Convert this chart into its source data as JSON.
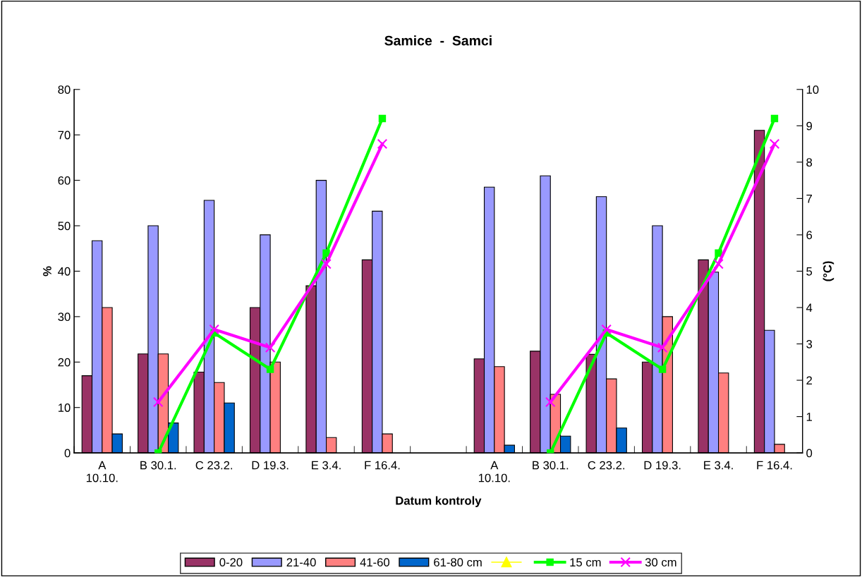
{
  "chart_data": {
    "type": "bar",
    "title": "Samice  -  Samci",
    "xlabel": "Datum kontroly",
    "ylabel": "%",
    "y2label": "(°C)",
    "categories": [
      "A\n10.10.",
      "B 30.1.",
      "C 23.2.",
      "D 19.3.",
      "E 3.4.",
      "F 16.4.",
      null,
      "A\n10.10.",
      "B 30.1.",
      "C 23.2.",
      "D 19.3.",
      "E 3.4.",
      "F 16.4."
    ],
    "series": [
      {
        "name": "0-20",
        "color": "#993366",
        "values": [
          17,
          21.8,
          17.8,
          32,
          36.8,
          42.5,
          null,
          20.7,
          22.4,
          21.7,
          20,
          42.5,
          71
        ]
      },
      {
        "name": "21-40",
        "color": "#9999ff",
        "values": [
          46.7,
          50,
          55.6,
          48,
          60,
          53.2,
          null,
          58.5,
          61,
          56.4,
          50,
          39.8,
          27
        ]
      },
      {
        "name": "41-60",
        "color": "#ff8080",
        "values": [
          32,
          21.8,
          15.5,
          20,
          3.4,
          4.2,
          null,
          19,
          12.9,
          16.3,
          30,
          17.6,
          1.9
        ]
      },
      {
        "name": "61-80 cm",
        "color": "#0066cc",
        "values": [
          4.2,
          6.6,
          11,
          null,
          null,
          null,
          null,
          1.7,
          3.7,
          5.5,
          null,
          null,
          null
        ]
      },
      {
        "type": "line",
        "axis": "y2",
        "color": "#ffff00",
        "marker": "triangle",
        "values": [
          null,
          null,
          null,
          null,
          null,
          null,
          null,
          null,
          null,
          null,
          null,
          null,
          null
        ]
      },
      {
        "type": "line",
        "axis": "y2",
        "name": "15 cm",
        "color": "#00ff00",
        "marker": "square",
        "values": [
          null,
          0,
          3.3,
          2.3,
          5.5,
          9.2,
          null,
          null,
          0,
          3.3,
          2.3,
          5.5,
          9.2
        ]
      },
      {
        "type": "line",
        "axis": "y2",
        "name": "30 cm",
        "color": "#ff00ff",
        "marker": "cross",
        "values": [
          null,
          1.4,
          3.4,
          2.9,
          5.2,
          8.5,
          null,
          null,
          1.4,
          3.4,
          2.9,
          5.2,
          8.5
        ]
      }
    ],
    "ylim": [
      0,
      80
    ],
    "yticks": [
      0,
      10,
      20,
      30,
      40,
      50,
      60,
      70,
      80
    ],
    "y2lim": [
      0,
      10
    ],
    "y2ticks": [
      0,
      1,
      2,
      3,
      4,
      5,
      6,
      7,
      8,
      9,
      10
    ],
    "grid": false,
    "legend": "bottom"
  }
}
